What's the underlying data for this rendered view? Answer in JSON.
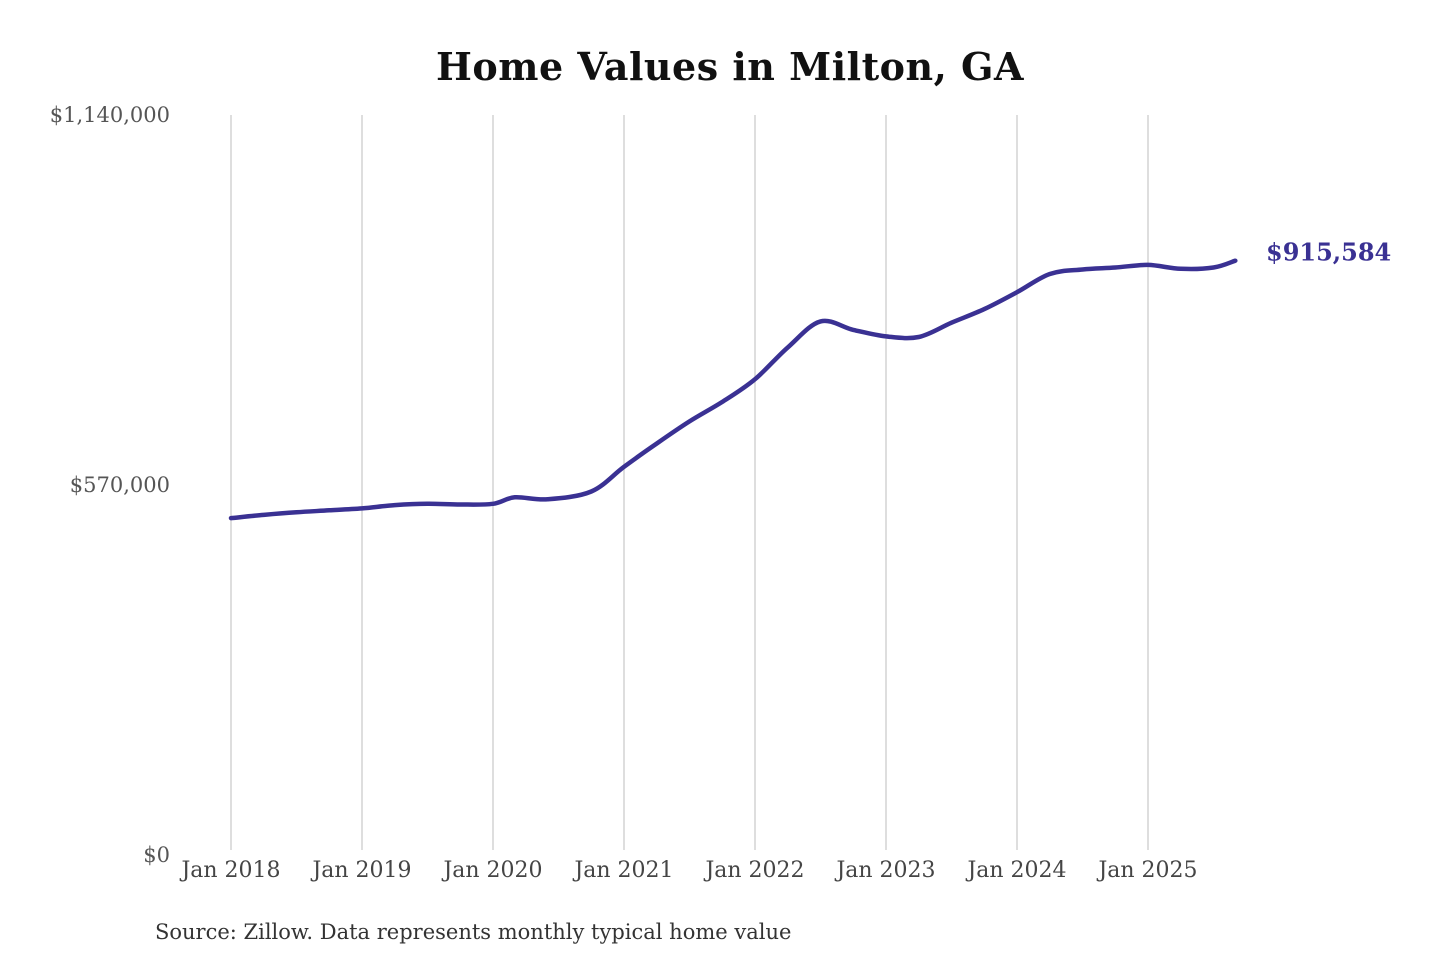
{
  "chart": {
    "title": "Home Values in Milton, GA"
  },
  "footer": {
    "source": "Source: Zillow. Data represents monthly typical home value"
  },
  "chart_data": {
    "type": "line",
    "title": "Home Values in Milton, GA",
    "xlabel": "",
    "ylabel": "",
    "ylim": [
      0,
      1140000
    ],
    "y_tick_values": [
      1140000,
      570000,
      0
    ],
    "y_tick_labels": [
      "$1,140,000",
      "$570,000",
      "$0"
    ],
    "x_tick_labels": [
      "Jan 2018",
      "Jan 2019",
      "Jan 2020",
      "Jan 2021",
      "Jan 2022",
      "Jan 2023",
      "Jan 2024",
      "Jan 2025"
    ],
    "grid": "vertical-only",
    "legend": "none",
    "line_color": "#3a3193",
    "grid_color": "#cccccc",
    "end_label": "$915,584",
    "end_value": 915584,
    "series": [
      {
        "name": "Monthly typical home value",
        "points": [
          {
            "date": "2018-01",
            "value": 519000
          },
          {
            "date": "2018-04",
            "value": 524000
          },
          {
            "date": "2018-07",
            "value": 528000
          },
          {
            "date": "2018-10",
            "value": 531000
          },
          {
            "date": "2019-01",
            "value": 534000
          },
          {
            "date": "2019-04",
            "value": 539000
          },
          {
            "date": "2019-07",
            "value": 541000
          },
          {
            "date": "2019-10",
            "value": 540000
          },
          {
            "date": "2020-01",
            "value": 541000
          },
          {
            "date": "2020-03",
            "value": 551000
          },
          {
            "date": "2020-06",
            "value": 548000
          },
          {
            "date": "2020-10",
            "value": 560000
          },
          {
            "date": "2021-01",
            "value": 598000
          },
          {
            "date": "2021-04",
            "value": 634000
          },
          {
            "date": "2021-07",
            "value": 668000
          },
          {
            "date": "2021-10",
            "value": 698000
          },
          {
            "date": "2022-01",
            "value": 733000
          },
          {
            "date": "2022-04",
            "value": 782000
          },
          {
            "date": "2022-07",
            "value": 822000
          },
          {
            "date": "2022-10",
            "value": 809000
          },
          {
            "date": "2023-01",
            "value": 799000
          },
          {
            "date": "2023-04",
            "value": 798000
          },
          {
            "date": "2023-07",
            "value": 820000
          },
          {
            "date": "2023-10",
            "value": 841000
          },
          {
            "date": "2024-01",
            "value": 867000
          },
          {
            "date": "2024-04",
            "value": 895000
          },
          {
            "date": "2024-07",
            "value": 902000
          },
          {
            "date": "2024-10",
            "value": 905000
          },
          {
            "date": "2025-01",
            "value": 909000
          },
          {
            "date": "2025-04",
            "value": 903000
          },
          {
            "date": "2025-07",
            "value": 905000
          },
          {
            "date": "2025-09",
            "value": 915584
          }
        ]
      }
    ]
  }
}
